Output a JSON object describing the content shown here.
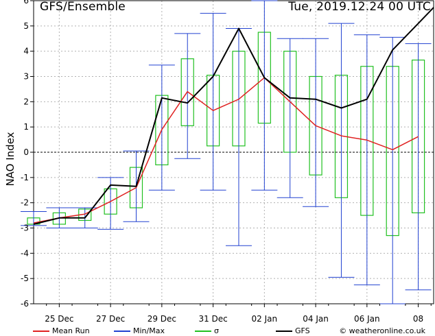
{
  "header": {
    "title": "GFS/Ensemble",
    "datetime": "Tue, 2019.12.24   00 UTC"
  },
  "chart_data": {
    "type": "line",
    "ylabel": "NAO Index",
    "ylim": [
      -6,
      6
    ],
    "yticks": [
      -6,
      -5,
      -4,
      -3,
      -2,
      -1,
      0,
      1,
      2,
      3,
      4,
      5,
      6
    ],
    "xlim": [
      0,
      31.2
    ],
    "xticks": [
      {
        "pos": 2,
        "label": "25 Dec"
      },
      {
        "pos": 6,
        "label": "27 Dec"
      },
      {
        "pos": 10,
        "label": "29 Dec"
      },
      {
        "pos": 14,
        "label": "31 Dec"
      },
      {
        "pos": 18,
        "label": "02 Jan"
      },
      {
        "pos": 22,
        "label": "04 Jan"
      },
      {
        "pos": 26,
        "label": "06 Jan"
      },
      {
        "pos": 30,
        "label": "08"
      }
    ],
    "x": [
      0,
      2,
      4,
      6,
      8,
      10,
      12,
      14,
      16,
      18,
      20,
      22,
      24,
      26,
      28,
      30,
      31.2
    ],
    "grid": true,
    "series": [
      {
        "name": "Mean Run",
        "color": "#e02020",
        "values": [
          -2.8,
          -2.6,
          -2.45,
          -1.95,
          -1.4,
          0.9,
          2.4,
          1.65,
          2.1,
          2.95,
          2.0,
          1.05,
          0.65,
          0.48,
          0.1,
          0.62,
          null
        ]
      },
      {
        "name": "GFS",
        "color": "#000000",
        "values": [
          -2.85,
          -2.6,
          -2.6,
          -1.3,
          -1.35,
          2.15,
          1.95,
          3.0,
          4.9,
          2.95,
          2.15,
          2.1,
          1.75,
          2.1,
          4.05,
          5.1,
          null
        ]
      }
    ],
    "minmax": {
      "name": "Min/Max",
      "color": "#2040d0",
      "min": [
        -2.9,
        -3.0,
        -3.0,
        -3.05,
        -2.75,
        -1.5,
        -0.25,
        -1.5,
        -3.7,
        -1.5,
        -1.8,
        -2.15,
        -4.95,
        -5.25,
        -6.0,
        -5.45
      ],
      "max": [
        -2.35,
        -2.2,
        -2.2,
        -1.0,
        0.05,
        3.45,
        4.7,
        5.5,
        4.9,
        6.0,
        4.5,
        4.5,
        5.1,
        4.65,
        4.55,
        4.3
      ]
    },
    "sigma": {
      "name": "σ",
      "color": "#20c020",
      "low": [
        -2.85,
        -2.85,
        -2.7,
        -2.45,
        -2.2,
        -0.5,
        1.05,
        0.25,
        0.25,
        1.15,
        0.0,
        -0.9,
        -1.8,
        -2.5,
        -3.3,
        -2.4
      ],
      "high": [
        -2.6,
        -2.4,
        -2.25,
        -1.45,
        -0.6,
        2.25,
        3.7,
        3.05,
        4.0,
        4.75,
        4.0,
        3.0,
        3.05,
        3.4,
        3.4,
        3.65
      ]
    }
  },
  "legend": {
    "items": [
      {
        "label": "Mean Run",
        "color": "#e02020"
      },
      {
        "label": "Min/Max",
        "color": "#2040d0"
      },
      {
        "label": "σ",
        "color": "#20c020"
      },
      {
        "label": "GFS",
        "color": "#000000"
      }
    ],
    "credit": "© weatheronline.co.uk"
  }
}
